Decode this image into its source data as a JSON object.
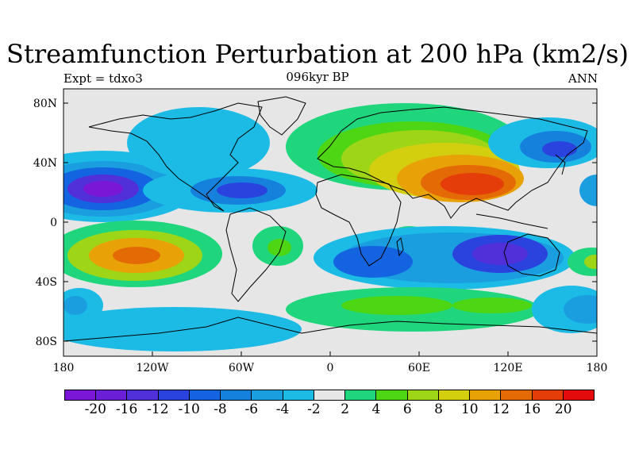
{
  "header": {
    "title": "Streamfunction Perturbation at 200 hPa (km2/s)",
    "left": "Expt = tdxo3",
    "center": "096kyr BP",
    "right": "ANN"
  },
  "axes": {
    "lat_ticks": [
      "80N",
      "40N",
      "0",
      "40S",
      "80S"
    ],
    "lon_ticks": [
      "180",
      "120W",
      "60W",
      "0",
      "60E",
      "120E",
      "180"
    ]
  },
  "colorbar": {
    "colors": [
      "#7a17d6",
      "#6a1fd6",
      "#5230d9",
      "#2a42de",
      "#1463e0",
      "#1581dd",
      "#1a9ee0",
      "#1cbbe6",
      "#e6e6e6",
      "#1fd67d",
      "#4ed614",
      "#9ed617",
      "#d3cf0e",
      "#e8a107",
      "#e46a06",
      "#e43d0a",
      "#e30b0b"
    ],
    "labels": [
      "-20",
      "-16",
      "-12",
      "-10",
      "-8",
      "-6",
      "-4",
      "-2",
      "2",
      "4",
      "6",
      "8",
      "10",
      "12",
      "16",
      "20"
    ]
  }
}
